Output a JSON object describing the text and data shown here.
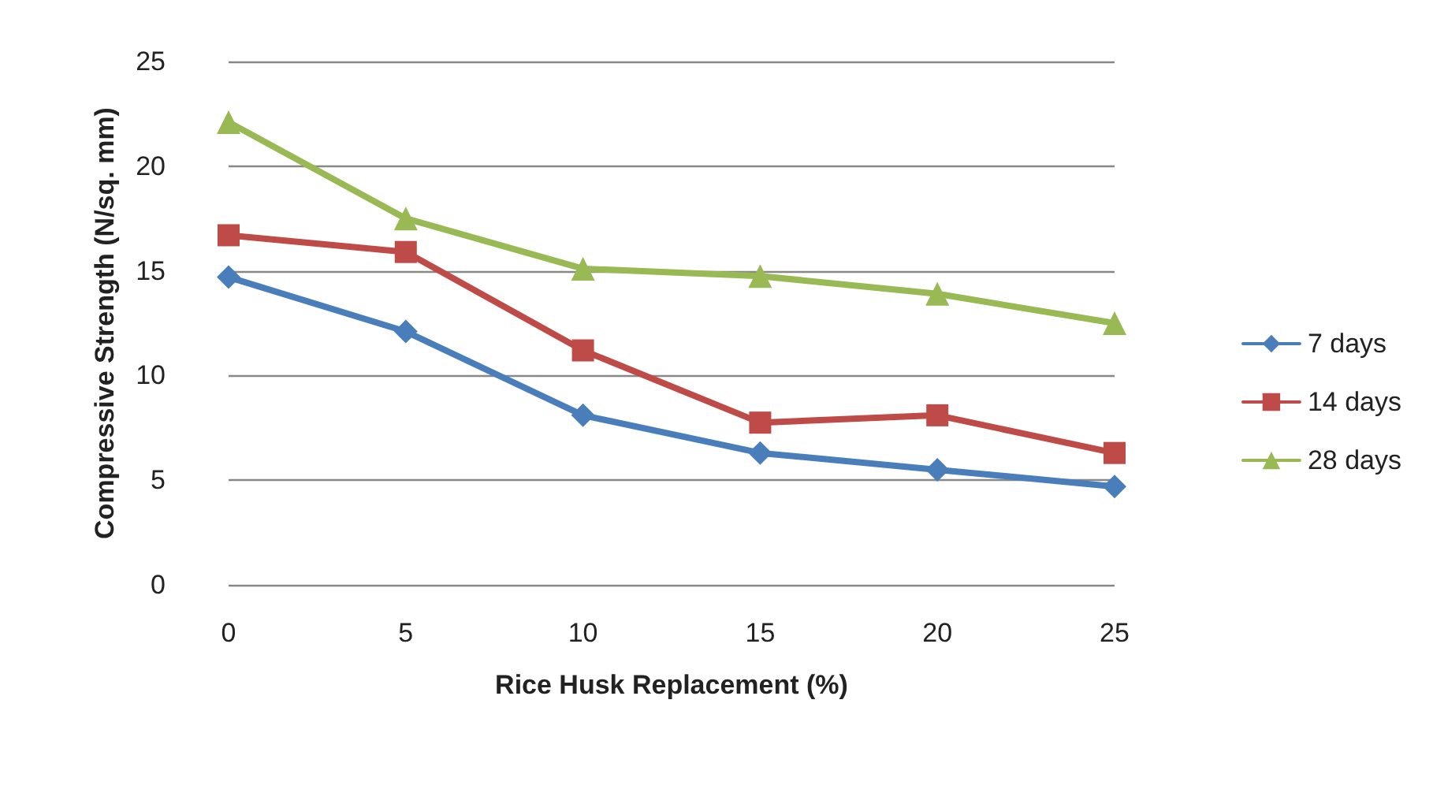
{
  "chart_data": {
    "type": "line",
    "xlabel": "Rice Husk Replacement (%)",
    "ylabel": "Compressive Strength (N/sq. mm)",
    "categories": [
      "0",
      "5",
      "10",
      "15",
      "20",
      "25"
    ],
    "series": [
      {
        "name": "7 days",
        "color": "#4a7ebb",
        "marker": "diamond",
        "values": [
          14.7,
          12.1,
          8.1,
          6.3,
          5.5,
          4.7
        ]
      },
      {
        "name": "14 days",
        "color": "#be4b48",
        "marker": "square",
        "values": [
          16.7,
          15.9,
          11.2,
          7.75,
          8.1,
          6.3
        ]
      },
      {
        "name": "28 days",
        "color": "#98b954",
        "marker": "triangle",
        "values": [
          22.1,
          17.5,
          15.1,
          14.75,
          13.9,
          12.5
        ]
      }
    ],
    "ylim": [
      0,
      25
    ],
    "yticks": [
      0,
      5,
      10,
      15,
      20,
      25
    ],
    "grid": "y",
    "legend": "right"
  }
}
